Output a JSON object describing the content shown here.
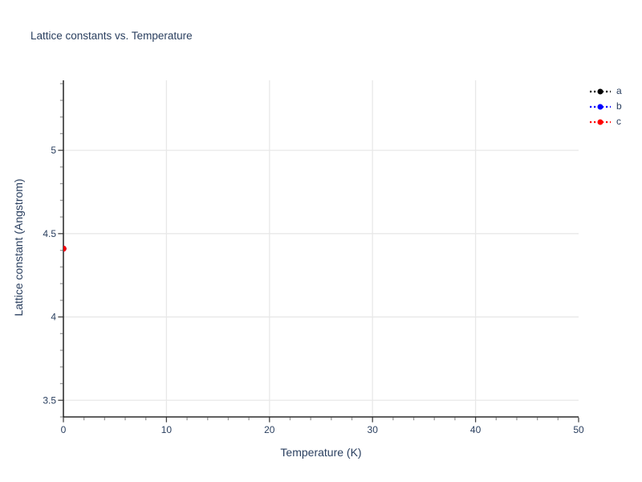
{
  "chart_data": {
    "type": "scatter",
    "title": "Lattice constants vs. Temperature",
    "xlabel": "Temperature (K)",
    "ylabel": "Lattice constant (Angstrom)",
    "xlim": [
      0,
      50
    ],
    "ylim": [
      3.4,
      5.42
    ],
    "x_major_ticks": [
      0,
      10,
      20,
      30,
      40,
      50
    ],
    "x_minor_step": 2,
    "y_major_ticks": [
      3.5,
      4,
      4.5,
      5
    ],
    "y_minor_step": 0.1,
    "grid": true,
    "legend_position": "top-right-outside",
    "series": [
      {
        "name": "a",
        "color": "#000000",
        "mode": "lines+markers",
        "line_style": "dot",
        "marker": "circle",
        "x": [
          0
        ],
        "y": [
          4.41
        ]
      },
      {
        "name": "b",
        "color": "#0000ff",
        "mode": "lines+markers",
        "line_style": "dot",
        "marker": "circle",
        "x": [
          0
        ],
        "y": [
          4.41
        ]
      },
      {
        "name": "c",
        "color": "#ff0000",
        "mode": "lines+markers",
        "line_style": "dot",
        "marker": "circle",
        "x": [
          0
        ],
        "y": [
          4.41
        ]
      }
    ],
    "colors": {
      "text": "#2a3f5f",
      "axis": "#000000",
      "grid": "#e8e8e8",
      "tick": "#444444",
      "minor_tick": "#999999",
      "background": "#ffffff"
    }
  }
}
